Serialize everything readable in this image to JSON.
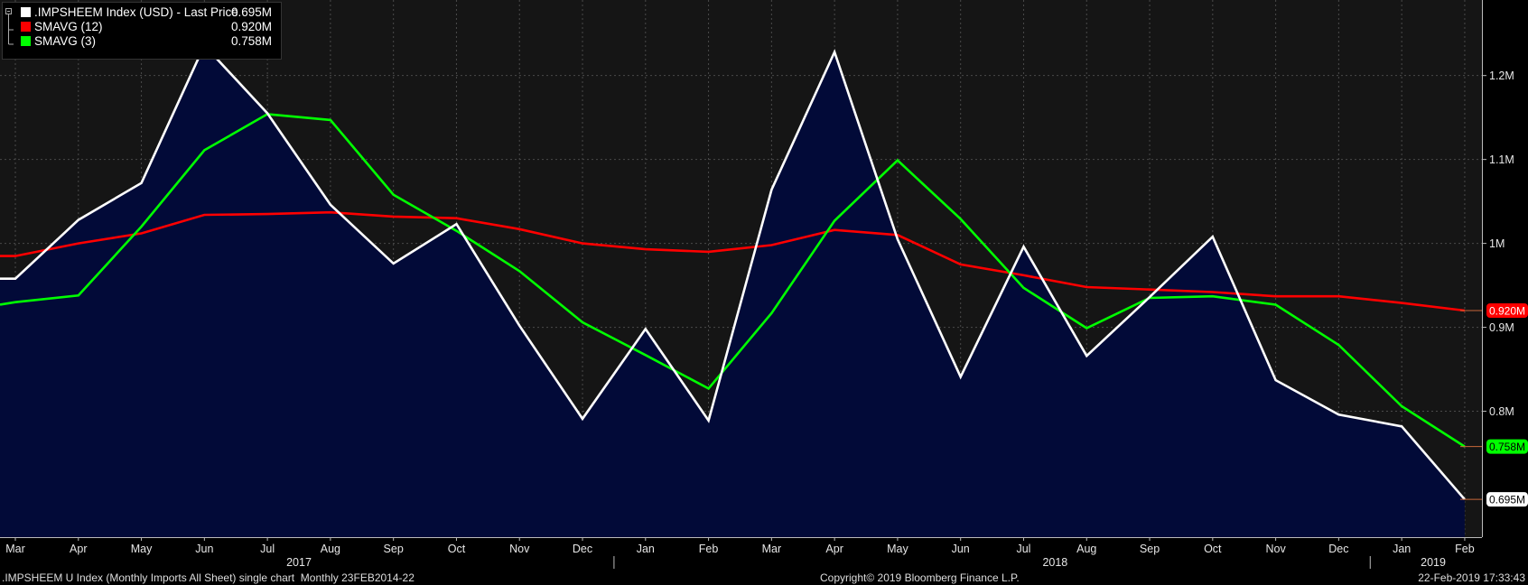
{
  "legend": {
    "items": [
      {
        "label": ".IMPSHEEM Index (USD) - Last Price",
        "value": "0.695M",
        "color": "#ffffff"
      },
      {
        "label": "SMAVG (12)",
        "value": "0.920M",
        "color": "#ff0000"
      },
      {
        "label": "SMAVG (3)",
        "value": "0.758M",
        "color": "#00ff00"
      }
    ]
  },
  "footer": {
    "left": ".IMPSHEEM U Index (Monthly Imports All Sheet) single chart  Monthly 23FEB2014-22",
    "center": "Copyright© 2019 Bloomberg Finance L.P.",
    "right": "22-Feb-2019 17:33:43"
  },
  "chart_data": {
    "type": "line",
    "x": [
      "Mar",
      "Apr",
      "May",
      "Jun",
      "Jul",
      "Aug",
      "Sep",
      "Oct",
      "Nov",
      "Dec",
      "Jan",
      "Feb",
      "Mar",
      "Apr",
      "May",
      "Jun",
      "Jul",
      "Aug",
      "Sep",
      "Oct",
      "Nov",
      "Dec",
      "Jan",
      "Feb"
    ],
    "year_labels": [
      {
        "label": "2017",
        "index": 4.5
      },
      {
        "label": "2018",
        "index": 16.5
      },
      {
        "label": "2019",
        "index": 22.5
      }
    ],
    "year_dividers": [
      9.5,
      21.5
    ],
    "y_ticks": [
      {
        "value": 0.8,
        "label": "0.8M"
      },
      {
        "value": 0.9,
        "label": "0.9M"
      },
      {
        "value": 1.0,
        "label": "1M"
      },
      {
        "value": 1.1,
        "label": "1.1M"
      },
      {
        "value": 1.2,
        "label": "1.2M"
      }
    ],
    "ylim": [
      0.65,
      1.29
    ],
    "grid": true,
    "series": [
      {
        "name": ".IMPSHEEM Index (USD) - Last Price",
        "color": "#ffffff",
        "area": true,
        "start": 0.958,
        "values": [
          0.958,
          1.028,
          1.072,
          1.236,
          1.155,
          1.046,
          0.976,
          1.023,
          0.902,
          0.791,
          0.898,
          0.789,
          1.064,
          1.228,
          1.005,
          0.841,
          0.996,
          0.866,
          0.936,
          1.008,
          0.837,
          0.796,
          0.782,
          0.695
        ]
      },
      {
        "name": "SMAVG (12)",
        "color": "#ff0000",
        "area": false,
        "start": 0.985,
        "values": [
          0.985,
          1.0,
          1.012,
          1.034,
          1.035,
          1.037,
          1.032,
          1.03,
          1.017,
          1.0,
          0.993,
          0.99,
          0.998,
          1.016,
          1.01,
          0.975,
          0.962,
          0.948,
          0.945,
          0.942,
          0.937,
          0.937,
          0.929,
          0.92
        ]
      },
      {
        "name": "SMAVG (3)",
        "color": "#00ff00",
        "area": false,
        "start": 0.927,
        "values": [
          0.93,
          0.938,
          1.02,
          1.111,
          1.154,
          1.147,
          1.058,
          1.015,
          0.967,
          0.906,
          0.867,
          0.827,
          0.917,
          1.027,
          1.099,
          1.029,
          0.947,
          0.899,
          0.935,
          0.937,
          0.927,
          0.879,
          0.806,
          0.758
        ]
      }
    ],
    "last_value_tags": [
      {
        "label": "0.920M",
        "value": 0.92,
        "bg": "#ff0000",
        "fg": "#ffffff"
      },
      {
        "label": "0.758M",
        "value": 0.758,
        "bg": "#00ff00",
        "fg": "#000000"
      },
      {
        "label": "0.695M",
        "value": 0.695,
        "bg": "#ffffff",
        "fg": "#000000"
      }
    ]
  }
}
